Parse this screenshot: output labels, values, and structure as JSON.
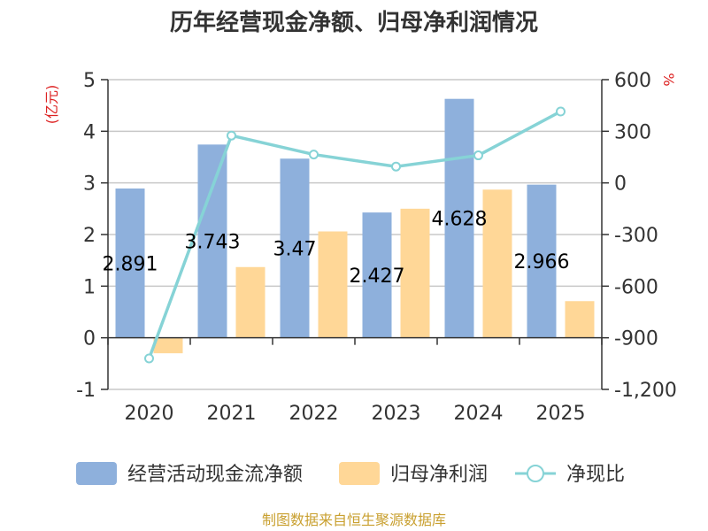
{
  "chart_data": {
    "type": "bar",
    "title": "历年经营现金净额、归母净利润情况",
    "categories": [
      "2020",
      "2021",
      "2022",
      "2023",
      "2024",
      "2025"
    ],
    "series": [
      {
        "name": "经营活动现金流净额",
        "type": "bar",
        "axis": "left",
        "values": [
          2.891,
          3.743,
          3.47,
          2.427,
          4.628,
          2.966
        ],
        "data_labels": [
          "2.891",
          "3.743",
          "3.47",
          "2.427",
          "4.628",
          "2.966"
        ]
      },
      {
        "name": "归母净利润",
        "type": "bar",
        "axis": "left",
        "values": [
          -0.3,
          1.37,
          2.06,
          2.5,
          2.87,
          0.71
        ]
      },
      {
        "name": "净现比",
        "type": "line",
        "axis": "right",
        "values": [
          -1020,
          275,
          165,
          95,
          160,
          415
        ]
      }
    ],
    "left_axis": {
      "label": "(亿元)",
      "ylim": [
        -1,
        5
      ],
      "ticks": [
        -1,
        0,
        1,
        2,
        3,
        4,
        5
      ],
      "tick_labels": [
        "-1",
        "0",
        "1",
        "2",
        "3",
        "4",
        "5"
      ]
    },
    "right_axis": {
      "label": "%",
      "ylim": [
        -1200,
        600
      ],
      "ticks": [
        -1200,
        -900,
        -600,
        -300,
        0,
        300,
        600
      ],
      "tick_labels": [
        "-1,200",
        "-900",
        "-600",
        "-300",
        "0",
        "300",
        "600"
      ]
    },
    "grid": true,
    "legend_position": "bottom"
  },
  "source": "制图数据来自恒生聚源数据库",
  "colors": {
    "bar_primary": "#8eb0dc",
    "bar_secondary": "#ffd797",
    "line": "#86d3d6",
    "axis_unit": "#dd2222",
    "source": "#c9a030",
    "grid": "#c8c8c8",
    "axis": "#333333"
  }
}
